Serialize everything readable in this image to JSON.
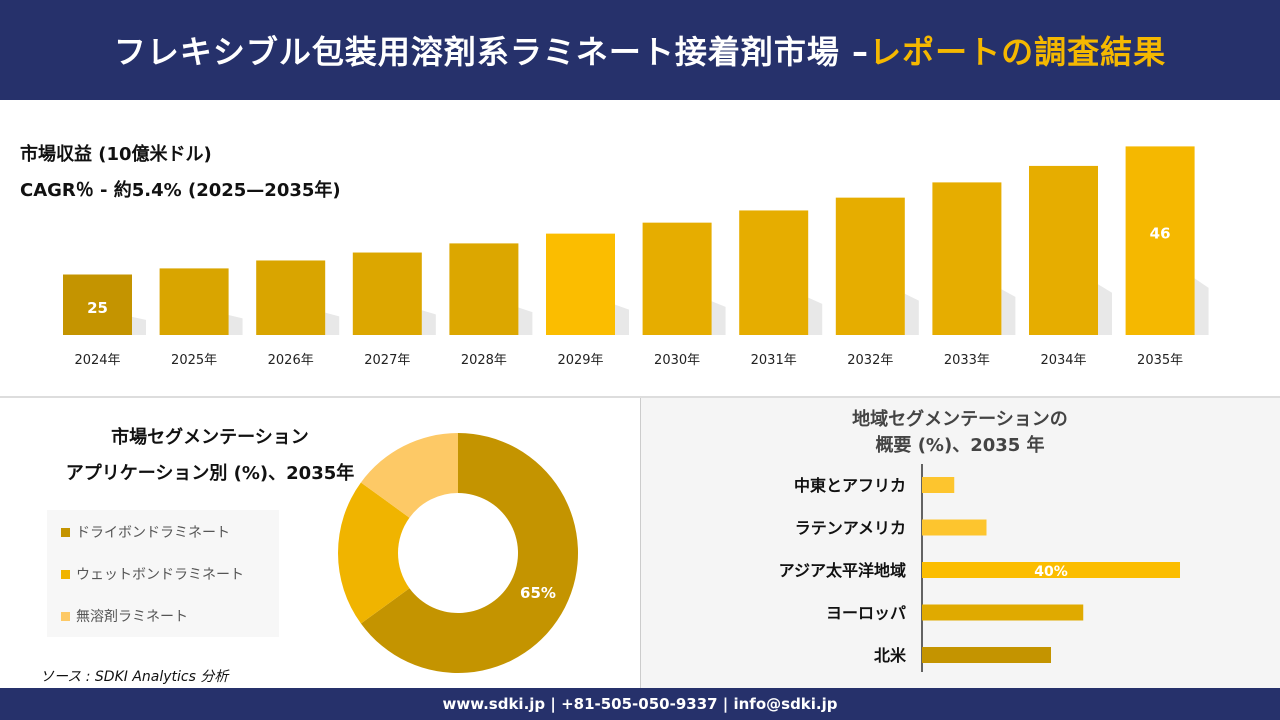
{
  "header": {
    "title_main": "フレキシブル包装用溶剤系ラミネート接着剤市場 –",
    "title_highlight": "レポートの調査結果"
  },
  "colors": {
    "navy": "#26316b",
    "gold_dark": "#c49400",
    "gold": "#e0aa00",
    "yellow": "#f5b800",
    "light": "#fdc966"
  },
  "chart_data": [
    {
      "type": "bar",
      "title": "市場収益 (10億米ドル)",
      "subtitle": "CAGR％ - 約5.4% (2025—2035年)",
      "categories": [
        "2024年",
        "2025年",
        "2026年",
        "2027年",
        "2028年",
        "2029年",
        "2030年",
        "2031年",
        "2032年",
        "2033年",
        "2034年",
        "2035年"
      ],
      "values": [
        25,
        26.0,
        27.3,
        28.6,
        30.1,
        31.7,
        33.5,
        35.5,
        37.6,
        40.1,
        42.8,
        46
      ],
      "data_labels": {
        "0": "25",
        "11": "46"
      }
    },
    {
      "type": "pie",
      "title": "市場セグメンテーション",
      "subtitle": "アプリケーション別 (%)、2035年",
      "categories": [
        "ドライボンドラミネート",
        "ウェットボンドラミネート",
        "無溶剤ラミネート"
      ],
      "values": [
        65,
        20,
        15
      ],
      "colors": [
        "#c49400",
        "#f0b400",
        "#fdc966"
      ],
      "data_labels": {
        "0": "65%"
      },
      "legend": "left"
    },
    {
      "type": "bar",
      "orientation": "horizontal",
      "title": "地域セグメンテーションの",
      "subtitle": "概要 (%)、2035 年",
      "categories": [
        "中東とアフリカ",
        "ラテンアメリカ",
        "アジア太平洋地域",
        "ヨーロッパ",
        "北米"
      ],
      "values": [
        5,
        10,
        40,
        25,
        20
      ],
      "colors": [
        "#fdc52e",
        "#fdc52e",
        "#fbbd00",
        "#e0aa00",
        "#c49400"
      ],
      "data_labels": {
        "2": "40%"
      }
    }
  ],
  "source": "ソース : SDKI Analytics 分析",
  "footer": "www.sdki.jp | +81-505-050-9337 | info@sdki.jp"
}
